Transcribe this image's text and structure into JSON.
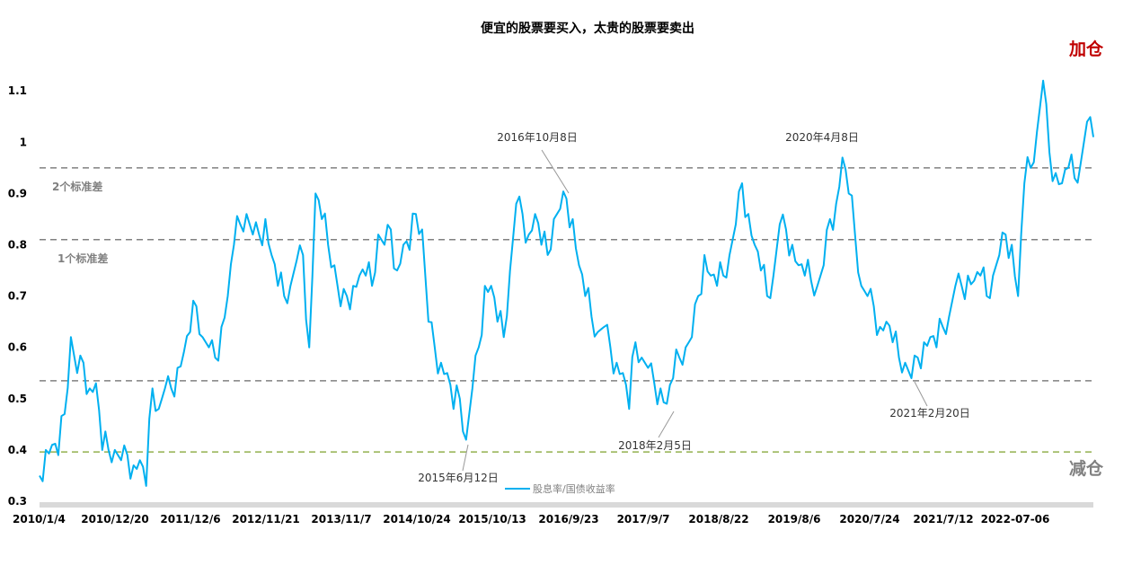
{
  "chart_data": {
    "type": "line",
    "title": "便宜的股票要买入，太贵的股票要卖出",
    "ylim": [
      0.3,
      1.1
    ],
    "yticks": [
      "0.3",
      "0.4",
      "0.5",
      "0.6",
      "0.7",
      "0.8",
      "0.9",
      "1",
      "1.1"
    ],
    "xticks": [
      "2010/1/4",
      "2010/12/20",
      "2011/12/6",
      "2012/11/21",
      "2013/11/7",
      "2014/10/24",
      "2015/10/13",
      "2016/9/23",
      "2017/9/7",
      "2018/8/22",
      "2019/8/6",
      "2020/7/24",
      "2021/7/12",
      "2022-07-06"
    ],
    "grid": false,
    "legend_position": "bottom",
    "series": [
      {
        "name": "股息率/国债收益率",
        "color": "#00B0F0",
        "values": [
          0.35,
          0.4,
          0.41,
          0.39,
          0.47,
          0.62,
          0.55,
          0.57,
          0.52,
          0.53,
          0.4,
          0.4,
          0.4,
          0.38,
          0.39,
          0.37,
          0.38,
          0.33,
          0.52,
          0.48,
          0.52,
          0.52,
          0.56,
          0.59,
          0.63,
          0.68,
          0.62,
          0.6,
          0.58,
          0.64,
          0.7,
          0.8,
          0.84,
          0.86,
          0.82,
          0.82,
          0.85,
          0.78,
          0.72,
          0.7,
          0.72,
          0.77,
          0.78,
          0.6,
          0.9,
          0.85,
          0.8,
          0.76,
          0.68,
          0.7,
          0.72,
          0.74,
          0.74,
          0.72,
          0.82,
          0.8,
          0.83,
          0.75,
          0.8,
          0.79,
          0.86,
          0.83,
          0.65,
          0.6,
          0.57,
          0.55,
          0.48,
          0.5,
          0.42,
          0.52,
          0.6,
          0.72,
          0.72,
          0.65,
          0.62,
          0.75,
          0.88,
          0.86,
          0.82,
          0.86,
          0.8,
          0.78,
          0.85,
          0.87,
          0.89,
          0.85,
          0.76,
          0.7,
          0.66,
          0.63,
          0.64,
          0.6,
          0.57,
          0.55,
          0.48,
          0.61,
          0.58,
          0.56,
          0.53,
          0.52,
          0.49,
          0.54,
          0.58,
          0.6,
          0.62,
          0.7,
          0.78,
          0.74,
          0.72,
          0.74,
          0.78,
          0.84,
          0.92,
          0.86,
          0.8,
          0.75,
          0.7,
          0.74,
          0.84,
          0.83,
          0.8,
          0.76,
          0.74,
          0.73,
          0.72,
          0.76,
          0.85,
          0.88,
          0.97,
          0.9,
          0.82,
          0.72,
          0.7,
          0.68,
          0.64,
          0.65,
          0.61,
          0.58,
          0.57,
          0.54,
          0.58,
          0.61,
          0.62,
          0.6,
          0.64,
          0.66,
          0.72,
          0.72,
          0.74,
          0.73,
          0.74,
          0.7,
          0.74,
          0.78,
          0.82,
          0.8,
          0.7,
          0.92,
          0.95,
          1.02,
          1.12,
          0.98,
          0.94,
          0.92,
          0.95,
          0.93,
          0.96,
          1.04,
          1.01
        ]
      }
    ],
    "reference_lines": [
      {
        "value": 0.95,
        "label": "2个标准差",
        "color": "#808080"
      },
      {
        "value": 0.81,
        "label": "1个标准差",
        "color": "#808080"
      },
      {
        "value": 0.535,
        "label": "",
        "color": "#808080"
      },
      {
        "value": 0.396,
        "label": "",
        "color": "#92B04F"
      }
    ],
    "annotations": [
      {
        "text": "2016年10月8日"
      },
      {
        "text": "2020年4月8日"
      },
      {
        "text": "2015年6月12日"
      },
      {
        "text": "2018年2月5日"
      },
      {
        "text": "2021年2月20日"
      }
    ],
    "side_labels": {
      "top": "加仓",
      "top_color": "#C00000",
      "bottom": "减仓",
      "bottom_color": "#808080"
    }
  }
}
